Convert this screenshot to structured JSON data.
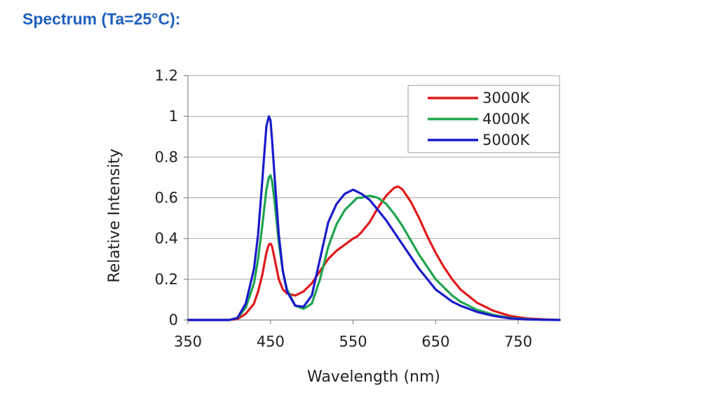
{
  "page": {
    "title": "Spectrum (Ta=25°C):"
  },
  "chart_data": {
    "type": "line",
    "xlabel": "Wavelength (nm)",
    "ylabel": "Relative Intensity",
    "xlim": [
      350,
      800
    ],
    "ylim": [
      0,
      1.2
    ],
    "xticks": [
      350,
      450,
      550,
      650,
      750
    ],
    "yticks": [
      0,
      0.2,
      0.4,
      0.6,
      0.8,
      1,
      1.2
    ],
    "ytick_labels": [
      "0",
      "0.2",
      "0.4",
      "0.6",
      "0.8",
      "1",
      "1.2"
    ],
    "grid": "horizontal",
    "legend_position": "top-right",
    "series": [
      {
        "name": "3000K",
        "color": "#e0191b",
        "x": [
          350,
          400,
          410,
          420,
          430,
          435,
          440,
          445,
          448,
          450,
          452,
          455,
          460,
          465,
          470,
          480,
          490,
          500,
          510,
          520,
          530,
          540,
          550,
          555,
          560,
          570,
          580,
          590,
          600,
          605,
          610,
          620,
          630,
          640,
          650,
          660,
          670,
          680,
          700,
          720,
          740,
          760,
          780,
          800
        ],
        "y": [
          0,
          0,
          0.005,
          0.03,
          0.08,
          0.14,
          0.22,
          0.33,
          0.37,
          0.375,
          0.36,
          0.3,
          0.2,
          0.15,
          0.13,
          0.12,
          0.14,
          0.18,
          0.24,
          0.3,
          0.34,
          0.37,
          0.4,
          0.41,
          0.43,
          0.48,
          0.55,
          0.61,
          0.65,
          0.655,
          0.64,
          0.58,
          0.5,
          0.41,
          0.33,
          0.26,
          0.2,
          0.15,
          0.085,
          0.045,
          0.02,
          0.008,
          0.003,
          0
        ]
      },
      {
        "name": "4000K",
        "color": "#1ea54e",
        "x": [
          350,
          400,
          410,
          420,
          430,
          435,
          440,
          445,
          448,
          450,
          452,
          455,
          460,
          465,
          470,
          480,
          490,
          500,
          510,
          520,
          530,
          540,
          550,
          555,
          560,
          570,
          580,
          590,
          600,
          610,
          620,
          630,
          640,
          650,
          660,
          670,
          680,
          700,
          720,
          740,
          760,
          780,
          800
        ],
        "y": [
          0,
          0,
          0.01,
          0.06,
          0.18,
          0.3,
          0.46,
          0.64,
          0.7,
          0.71,
          0.68,
          0.58,
          0.38,
          0.24,
          0.15,
          0.07,
          0.055,
          0.08,
          0.2,
          0.36,
          0.47,
          0.54,
          0.58,
          0.6,
          0.6,
          0.61,
          0.6,
          0.57,
          0.52,
          0.46,
          0.39,
          0.32,
          0.26,
          0.2,
          0.16,
          0.12,
          0.09,
          0.05,
          0.025,
          0.01,
          0.004,
          0.001,
          0
        ]
      },
      {
        "name": "5000K",
        "color": "#1a1acc",
        "x": [
          350,
          400,
          410,
          420,
          430,
          435,
          440,
          445,
          448,
          450,
          452,
          455,
          460,
          465,
          470,
          480,
          490,
          500,
          510,
          520,
          530,
          540,
          550,
          555,
          560,
          570,
          580,
          590,
          600,
          610,
          620,
          630,
          640,
          650,
          660,
          670,
          680,
          700,
          720,
          740,
          760,
          780,
          800
        ],
        "y": [
          0,
          0,
          0.01,
          0.08,
          0.25,
          0.42,
          0.68,
          0.95,
          1.0,
          0.98,
          0.88,
          0.7,
          0.42,
          0.24,
          0.14,
          0.07,
          0.065,
          0.12,
          0.3,
          0.48,
          0.57,
          0.62,
          0.64,
          0.63,
          0.62,
          0.59,
          0.54,
          0.49,
          0.43,
          0.37,
          0.31,
          0.25,
          0.2,
          0.15,
          0.12,
          0.09,
          0.07,
          0.04,
          0.02,
          0.008,
          0.003,
          0.001,
          0
        ]
      }
    ]
  }
}
